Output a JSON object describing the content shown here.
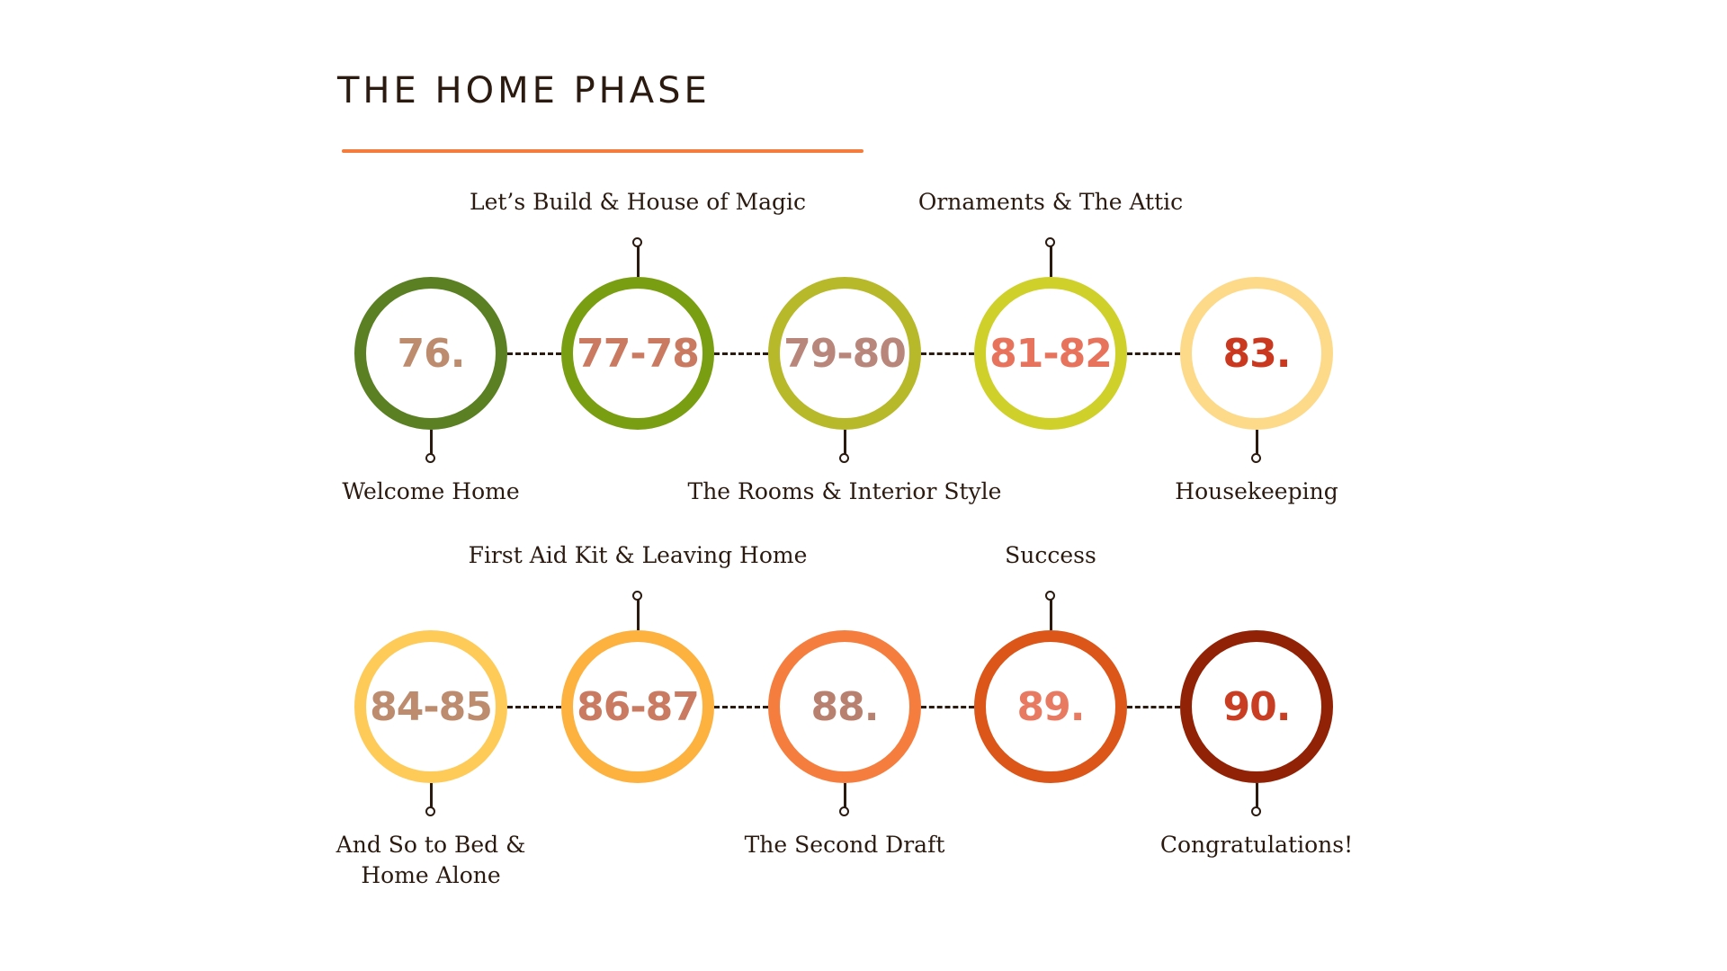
{
  "title": "THE HOME PHASE",
  "colors": {
    "accent_rule": "#f47c3c",
    "ink": "#2a1a10"
  },
  "rows": [
    [
      {
        "number": "76.",
        "label": "Welcome Home",
        "label_position": "bottom",
        "ring_color": "#5a8023",
        "number_color": "#bd8b6e"
      },
      {
        "number": "77-78",
        "label": "Let’s Build & House of Magic",
        "label_position": "top",
        "ring_color": "#7a9e12",
        "number_color": "#c97a60"
      },
      {
        "number": "79-80",
        "label": "The Rooms & Interior Style",
        "label_position": "bottom",
        "ring_color": "#b7b92a",
        "number_color": "#b8867a"
      },
      {
        "number": "81-82",
        "label": "Ornaments & The Attic",
        "label_position": "top",
        "ring_color": "#cfd02a",
        "number_color": "#e8735c"
      },
      {
        "number": "83.",
        "label": "Housekeeping",
        "label_position": "bottom",
        "ring_color": "#fdd98a",
        "number_color": "#c9381f"
      }
    ],
    [
      {
        "number": "84-85",
        "label": "And So to Bed &\nHome Alone",
        "label_position": "bottom",
        "ring_color": "#fecb58",
        "number_color": "#bd8b6e"
      },
      {
        "number": "86-87",
        "label": "First Aid Kit & Leaving Home",
        "label_position": "top",
        "ring_color": "#fdb13e",
        "number_color": "#c97a60"
      },
      {
        "number": "88.",
        "label": "The Second Draft",
        "label_position": "bottom",
        "ring_color": "#f57e3f",
        "number_color": "#b8806f"
      },
      {
        "number": "89.",
        "label": "Success",
        "label_position": "top",
        "ring_color": "#db5618",
        "number_color": "#e87a62"
      },
      {
        "number": "90.",
        "label": "Congratulations!",
        "label_position": "bottom",
        "ring_color": "#922205",
        "number_color": "#c93e22"
      }
    ]
  ]
}
